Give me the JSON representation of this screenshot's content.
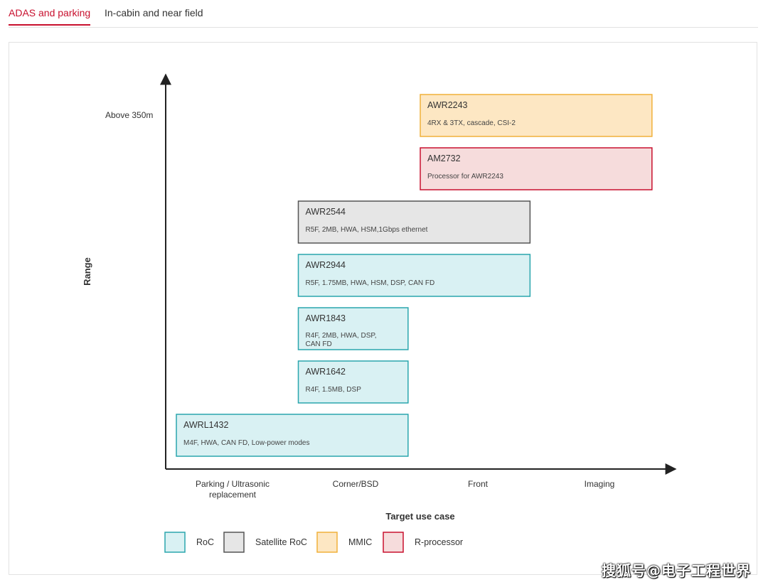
{
  "tabs": [
    {
      "label": "ADAS and parking",
      "active": true
    },
    {
      "label": "In-cabin and near field",
      "active": false
    }
  ],
  "colors": {
    "accent": "#c8102e",
    "roc_fill": "#d9f1f3",
    "roc_border": "#2aa6ad",
    "satellite_fill": "#e6e6e6",
    "satellite_border": "#555555",
    "mmic_fill": "#fde7c3",
    "mmic_border": "#f0b13a",
    "rproc_fill": "#f6dcdc",
    "rproc_border": "#c8102e"
  },
  "chart_data": {
    "type": "range-bar",
    "xlabel": "Target use case",
    "ylabel": "Range",
    "y_tick": "Above 350m",
    "categories": [
      "Parking / Ultrasonic replacement",
      "Corner/BSD",
      "Front",
      "Imaging"
    ],
    "devices": [
      {
        "name": "AWR2243",
        "desc": [
          "4RX & 3TX, cascade, CSI-2"
        ],
        "type": "MMIC",
        "x_start": 2.0,
        "x_end": 3.9
      },
      {
        "name": "AM2732",
        "desc": [
          "Processor for AWR2243"
        ],
        "type": "R-processor",
        "x_start": 2.0,
        "x_end": 3.9
      },
      {
        "name": "AWR2544",
        "desc": [
          "R5F, 2MB, HWA, HSM,1Gbps ethernet"
        ],
        "type": "Satellite RoC",
        "x_start": 1.0,
        "x_end": 2.9
      },
      {
        "name": "AWR2944",
        "desc": [
          "R5F, 1.75MB, HWA, HSM, DSP, CAN FD"
        ],
        "type": "RoC",
        "x_start": 1.0,
        "x_end": 2.9
      },
      {
        "name": "AWR1843",
        "desc": [
          "R4F, 2MB, HWA, DSP,",
          "CAN FD"
        ],
        "type": "RoC",
        "x_start": 1.0,
        "x_end": 1.9
      },
      {
        "name": "AWR1642",
        "desc": [
          "R4F, 1.5MB, DSP"
        ],
        "type": "RoC",
        "x_start": 1.0,
        "x_end": 1.9
      },
      {
        "name": "AWRL1432",
        "desc": [
          "M4F, HWA, CAN FD, Low-power modes"
        ],
        "type": "RoC",
        "x_start": 0.0,
        "x_end": 1.9
      }
    ],
    "legend": [
      "RoC",
      "Satellite RoC",
      "MMIC",
      "R-processor"
    ],
    "legend_placement": "bottom-left"
  },
  "watermark": "搜狐号@电子工程世界"
}
